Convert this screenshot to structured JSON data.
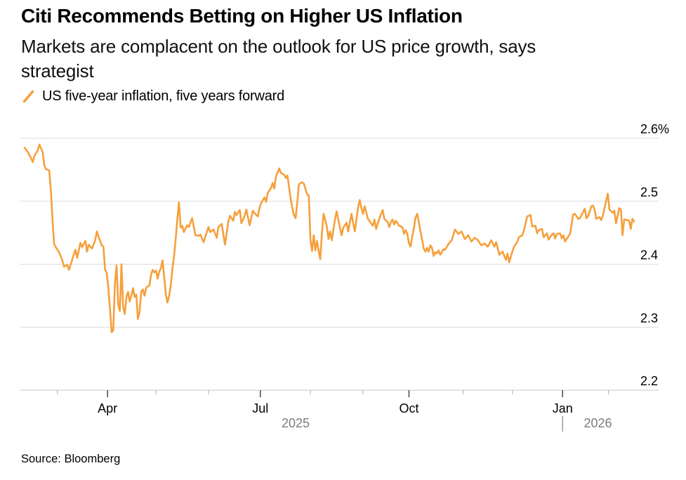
{
  "header": {
    "title": "Citi Recommends Betting on Higher US Inflation",
    "subtitle_line1": "Markets are complacent on the outlook for US price growth, says",
    "subtitle_line2": "strategist"
  },
  "legend": {
    "label": "US five-year inflation, five years forward"
  },
  "footer": {
    "source": "Source: Bloomberg"
  },
  "chart_data": {
    "type": "line",
    "title": "Citi Recommends Betting on Higher US Inflation",
    "series_name": "US five-year inflation, five years forward",
    "unit": "%",
    "color": "#F5A03C",
    "grid_color": "#DBDBDB",
    "axis_color": "#C9C9C9",
    "minor_tick_color": "#ADADAD",
    "major_tick_color": "#474747",
    "month_label_color": "#000000",
    "year_label_color": "#7C7C7C",
    "ylim": [
      2.2,
      2.6
    ],
    "yticks": [
      {
        "label": "2.6%",
        "value": 2.6
      },
      {
        "label": "2.5",
        "value": 2.5
      },
      {
        "label": "2.4",
        "value": 2.4
      },
      {
        "label": "2.3",
        "value": 2.3
      },
      {
        "label": "2.2",
        "value": 2.2
      }
    ],
    "x_axis": {
      "major_ticks": [
        {
          "label": "Apr",
          "day": 50.5
        },
        {
          "label": "Jul",
          "day": 143.5
        },
        {
          "label": "Oct",
          "day": 234
        },
        {
          "label": "Jan",
          "day": 327.5
        }
      ],
      "minor_tick_days": [
        20,
        80,
        112,
        174,
        206,
        267,
        297,
        355.5
      ],
      "years": [
        {
          "label": "2025",
          "day": 165
        },
        {
          "label": "2026",
          "day": 349,
          "divider_day": 327.5
        }
      ]
    },
    "points": [
      [
        0,
        2.585
      ],
      [
        2,
        2.578
      ],
      [
        4,
        2.568
      ],
      [
        5,
        2.562
      ],
      [
        6,
        2.572
      ],
      [
        8,
        2.581
      ],
      [
        9,
        2.59
      ],
      [
        11,
        2.578
      ],
      [
        12,
        2.557
      ],
      [
        13,
        2.551
      ],
      [
        15,
        2.549
      ],
      [
        16,
        2.518
      ],
      [
        17,
        2.47
      ],
      [
        18,
        2.432
      ],
      [
        19,
        2.427
      ],
      [
        21,
        2.419
      ],
      [
        23,
        2.406
      ],
      [
        24,
        2.396
      ],
      [
        26,
        2.399
      ],
      [
        27,
        2.391
      ],
      [
        29,
        2.407
      ],
      [
        30,
        2.416
      ],
      [
        31,
        2.423
      ],
      [
        32,
        2.41
      ],
      [
        34,
        2.434
      ],
      [
        35,
        2.427
      ],
      [
        37,
        2.437
      ],
      [
        38,
        2.42
      ],
      [
        39,
        2.431
      ],
      [
        41,
        2.425
      ],
      [
        43,
        2.438
      ],
      [
        44,
        2.452
      ],
      [
        45,
        2.444
      ],
      [
        46,
        2.437
      ],
      [
        47,
        2.43
      ],
      [
        48,
        2.428
      ],
      [
        49,
        2.392
      ],
      [
        50,
        2.386
      ],
      [
        51,
        2.362
      ],
      [
        52,
        2.328
      ],
      [
        53,
        2.292
      ],
      [
        54,
        2.295
      ],
      [
        55,
        2.37
      ],
      [
        56,
        2.398
      ],
      [
        57,
        2.335
      ],
      [
        58,
        2.326
      ],
      [
        59,
        2.4
      ],
      [
        60,
        2.332
      ],
      [
        61,
        2.321
      ],
      [
        62,
        2.348
      ],
      [
        63,
        2.356
      ],
      [
        64,
        2.341
      ],
      [
        65,
        2.35
      ],
      [
        66,
        2.362
      ],
      [
        67,
        2.348
      ],
      [
        68,
        2.352
      ],
      [
        69,
        2.313
      ],
      [
        70,
        2.324
      ],
      [
        71,
        2.356
      ],
      [
        72,
        2.36
      ],
      [
        73,
        2.35
      ],
      [
        74,
        2.362
      ],
      [
        75,
        2.365
      ],
      [
        76,
        2.366
      ],
      [
        77,
        2.384
      ],
      [
        78,
        2.391
      ],
      [
        79,
        2.387
      ],
      [
        80,
        2.39
      ],
      [
        81,
        2.377
      ],
      [
        82,
        2.388
      ],
      [
        83,
        2.394
      ],
      [
        84,
        2.406
      ],
      [
        85,
        2.379
      ],
      [
        86,
        2.352
      ],
      [
        87,
        2.339
      ],
      [
        88,
        2.35
      ],
      [
        89,
        2.366
      ],
      [
        90,
        2.394
      ],
      [
        91,
        2.413
      ],
      [
        92,
        2.44
      ],
      [
        93,
        2.472
      ],
      [
        94,
        2.498
      ],
      [
        95,
        2.458
      ],
      [
        96,
        2.461
      ],
      [
        97,
        2.451
      ],
      [
        99,
        2.462
      ],
      [
        100,
        2.459
      ],
      [
        102,
        2.473
      ],
      [
        104,
        2.446
      ],
      [
        106,
        2.445
      ],
      [
        107,
        2.447
      ],
      [
        109,
        2.435
      ],
      [
        110,
        2.444
      ],
      [
        112,
        2.459
      ],
      [
        113,
        2.451
      ],
      [
        115,
        2.455
      ],
      [
        117,
        2.442
      ],
      [
        118,
        2.459
      ],
      [
        120,
        2.464
      ],
      [
        122,
        2.431
      ],
      [
        124,
        2.467
      ],
      [
        125,
        2.477
      ],
      [
        127,
        2.469
      ],
      [
        128,
        2.483
      ],
      [
        129,
        2.478
      ],
      [
        131,
        2.486
      ],
      [
        132,
        2.465
      ],
      [
        134,
        2.477
      ],
      [
        135,
        2.487
      ],
      [
        137,
        2.462
      ],
      [
        139,
        2.485
      ],
      [
        140,
        2.481
      ],
      [
        142,
        2.476
      ],
      [
        143,
        2.489
      ],
      [
        144,
        2.497
      ],
      [
        146,
        2.506
      ],
      [
        147,
        2.499
      ],
      [
        148,
        2.513
      ],
      [
        150,
        2.521
      ],
      [
        151,
        2.529
      ],
      [
        152,
        2.52
      ],
      [
        153,
        2.539
      ],
      [
        155,
        2.552
      ],
      [
        156,
        2.545
      ],
      [
        158,
        2.542
      ],
      [
        159,
        2.537
      ],
      [
        160,
        2.541
      ],
      [
        162,
        2.504
      ],
      [
        163,
        2.489
      ],
      [
        164,
        2.478
      ],
      [
        165,
        2.473
      ],
      [
        166,
        2.498
      ],
      [
        167,
        2.527
      ],
      [
        169,
        2.53
      ],
      [
        170,
        2.528
      ],
      [
        172,
        2.511
      ],
      [
        173,
        2.509
      ],
      [
        174,
        2.44
      ],
      [
        175,
        2.421
      ],
      [
        176,
        2.446
      ],
      [
        177,
        2.422
      ],
      [
        178,
        2.437
      ],
      [
        179,
        2.421
      ],
      [
        180,
        2.408
      ],
      [
        181,
        2.45
      ],
      [
        182,
        2.48
      ],
      [
        184,
        2.46
      ],
      [
        185,
        2.44
      ],
      [
        186,
        2.452
      ],
      [
        187,
        2.438
      ],
      [
        189,
        2.472
      ],
      [
        190,
        2.484
      ],
      [
        191,
        2.47
      ],
      [
        193,
        2.446
      ],
      [
        194,
        2.458
      ],
      [
        196,
        2.466
      ],
      [
        197,
        2.452
      ],
      [
        199,
        2.48
      ],
      [
        200,
        2.466
      ],
      [
        201,
        2.452
      ],
      [
        203,
        2.49
      ],
      [
        204,
        2.502
      ],
      [
        205,
        2.49
      ],
      [
        206,
        2.48
      ],
      [
        207,
        2.492
      ],
      [
        209,
        2.472
      ],
      [
        212,
        2.461
      ],
      [
        213,
        2.471
      ],
      [
        214,
        2.456
      ],
      [
        215,
        2.465
      ],
      [
        217,
        2.48
      ],
      [
        218,
        2.486
      ],
      [
        219,
        2.472
      ],
      [
        221,
        2.467
      ],
      [
        222,
        2.459
      ],
      [
        223,
        2.467
      ],
      [
        224,
        2.471
      ],
      [
        225,
        2.463
      ],
      [
        226,
        2.469
      ],
      [
        228,
        2.461
      ],
      [
        230,
        2.459
      ],
      [
        231,
        2.448
      ],
      [
        232,
        2.454
      ],
      [
        233,
        2.448
      ],
      [
        234,
        2.433
      ],
      [
        235,
        2.428
      ],
      [
        236,
        2.445
      ],
      [
        237,
        2.457
      ],
      [
        238,
        2.474
      ],
      [
        239,
        2.48
      ],
      [
        240,
        2.467
      ],
      [
        241,
        2.452
      ],
      [
        242,
        2.439
      ],
      [
        243,
        2.425
      ],
      [
        244,
        2.42
      ],
      [
        245,
        2.426
      ],
      [
        246,
        2.42
      ],
      [
        247,
        2.43
      ],
      [
        248,
        2.426
      ],
      [
        249,
        2.413
      ],
      [
        250,
        2.419
      ],
      [
        251,
        2.417
      ],
      [
        252,
        2.422
      ],
      [
        253,
        2.415
      ],
      [
        254,
        2.419
      ],
      [
        255,
        2.424
      ],
      [
        256,
        2.423
      ],
      [
        258,
        2.432
      ],
      [
        260,
        2.438
      ],
      [
        262,
        2.455
      ],
      [
        264,
        2.448
      ],
      [
        266,
        2.452
      ],
      [
        268,
        2.44
      ],
      [
        270,
        2.446
      ],
      [
        272,
        2.436
      ],
      [
        274,
        2.442
      ],
      [
        276,
        2.438
      ],
      [
        278,
        2.43
      ],
      [
        280,
        2.433
      ],
      [
        282,
        2.428
      ],
      [
        284,
        2.438
      ],
      [
        285,
        2.433
      ],
      [
        286,
        2.428
      ],
      [
        287,
        2.435
      ],
      [
        289,
        2.415
      ],
      [
        291,
        2.42
      ],
      [
        293,
        2.407
      ],
      [
        294,
        2.417
      ],
      [
        295,
        2.403
      ],
      [
        297,
        2.421
      ],
      [
        298,
        2.428
      ],
      [
        300,
        2.436
      ],
      [
        301,
        2.443
      ],
      [
        303,
        2.446
      ],
      [
        304,
        2.454
      ],
      [
        306,
        2.476
      ],
      [
        308,
        2.478
      ],
      [
        309,
        2.46
      ],
      [
        311,
        2.461
      ],
      [
        312,
        2.449
      ],
      [
        313,
        2.454
      ],
      [
        315,
        2.456
      ],
      [
        316,
        2.443
      ],
      [
        318,
        2.449
      ],
      [
        319,
        2.439
      ],
      [
        321,
        2.447
      ],
      [
        322,
        2.449
      ],
      [
        323,
        2.441
      ],
      [
        324,
        2.448
      ],
      [
        326,
        2.449
      ],
      [
        327,
        2.441
      ],
      [
        328,
        2.446
      ],
      [
        329,
        2.436
      ],
      [
        331,
        2.444
      ],
      [
        332,
        2.448
      ],
      [
        334,
        2.479
      ],
      [
        335,
        2.48
      ],
      [
        337,
        2.472
      ],
      [
        338,
        2.473
      ],
      [
        340,
        2.483
      ],
      [
        341,
        2.488
      ],
      [
        342,
        2.473
      ],
      [
        343,
        2.476
      ],
      [
        345,
        2.492
      ],
      [
        346,
        2.493
      ],
      [
        347,
        2.487
      ],
      [
        348,
        2.472
      ],
      [
        350,
        2.475
      ],
      [
        351,
        2.47
      ],
      [
        352,
        2.477
      ],
      [
        353,
        2.489
      ],
      [
        355,
        2.512
      ],
      [
        356,
        2.487
      ],
      [
        358,
        2.482
      ],
      [
        359,
        2.485
      ],
      [
        360,
        2.465
      ],
      [
        362,
        2.489
      ],
      [
        363,
        2.487
      ],
      [
        364,
        2.446
      ],
      [
        365,
        2.471
      ],
      [
        367,
        2.47
      ],
      [
        368,
        2.469
      ],
      [
        369,
        2.456
      ],
      [
        370,
        2.472
      ],
      [
        371,
        2.468
      ]
    ]
  }
}
